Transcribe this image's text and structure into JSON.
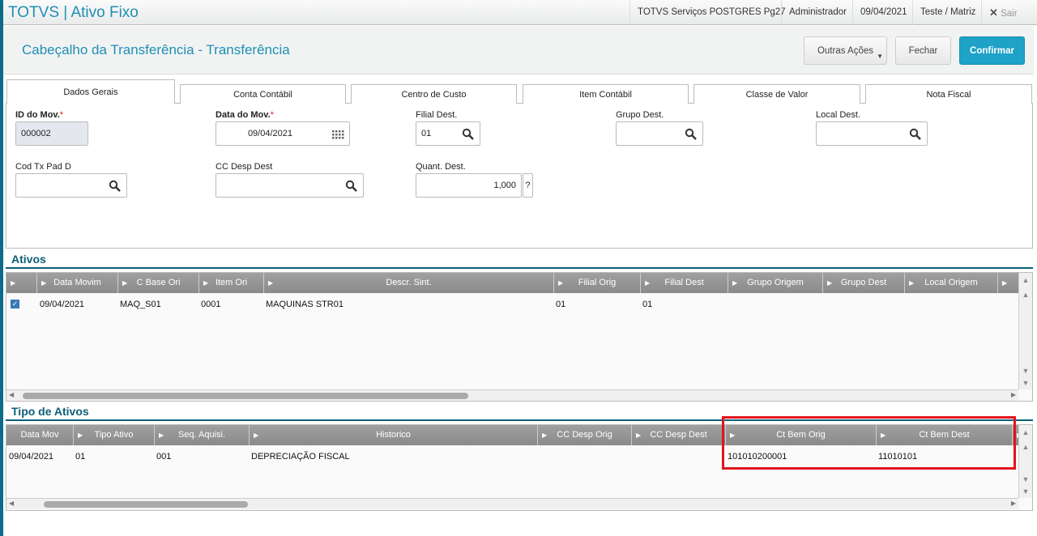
{
  "app": {
    "title": "TOTVS | Ativo Fixo",
    "server": "TOTVS Serviços POSTGRES Pg27",
    "user": "Administrador",
    "date": "09/04/2021",
    "company": "Teste / Matriz",
    "exit": "Sair"
  },
  "header": {
    "title": "Cabeçalho da Transferência - Transferência",
    "other_actions": "Outras Ações",
    "close": "Fechar",
    "confirm": "Confirmar"
  },
  "tabs": [
    "Dados Gerais",
    "Conta Contábil",
    "Centro de Custo",
    "Item Contábil",
    "Classe de Valor",
    "Nota Fiscal"
  ],
  "form": {
    "id_mov": {
      "label": "ID do Mov.",
      "value": "000002"
    },
    "data_mov": {
      "label": "Data do Mov.",
      "value": "09/04/2021"
    },
    "filial_dest": {
      "label": "Filial Dest.",
      "value": "01"
    },
    "grupo_dest": {
      "label": "Grupo Dest.",
      "value": ""
    },
    "local_dest": {
      "label": "Local Dest.",
      "value": ""
    },
    "cod_tx": {
      "label": "Cod Tx Pad D",
      "value": ""
    },
    "cc_desp": {
      "label": "CC Desp Dest",
      "value": ""
    },
    "quant": {
      "label": "Quant. Dest.",
      "value": "1,000",
      "help": "?"
    }
  },
  "ativos": {
    "title": "Ativos",
    "columns": [
      "Data Movim",
      "C Base Ori",
      "Item Ori",
      "Descr. Sint.",
      "Filial Orig",
      "Filial Dest",
      "Grupo Origem",
      "Grupo Dest",
      "Local Origem"
    ],
    "rows": [
      {
        "checked": true,
        "cells": [
          "09/04/2021",
          "MAQ_S01",
          "0001",
          "MAQUINAS STR01",
          "01",
          "01",
          "",
          "",
          ""
        ]
      }
    ]
  },
  "tipos": {
    "title": "Tipo de Ativos",
    "columns": [
      "Data Mov",
      "Tipo Ativo",
      "Seq. Aquisi.",
      "Historico",
      "CC Desp Orig",
      "CC Desp Dest",
      "Ct Bem Orig",
      "Ct Bem Dest"
    ],
    "rows": [
      {
        "cells": [
          "09/04/2021",
          "01",
          "001",
          "DEPRECIAÇÃO FISCAL",
          "",
          "",
          "101010200001",
          "11010101"
        ]
      }
    ]
  },
  "highlight_color": "#e0141c",
  "accent": "#1f8fb3"
}
